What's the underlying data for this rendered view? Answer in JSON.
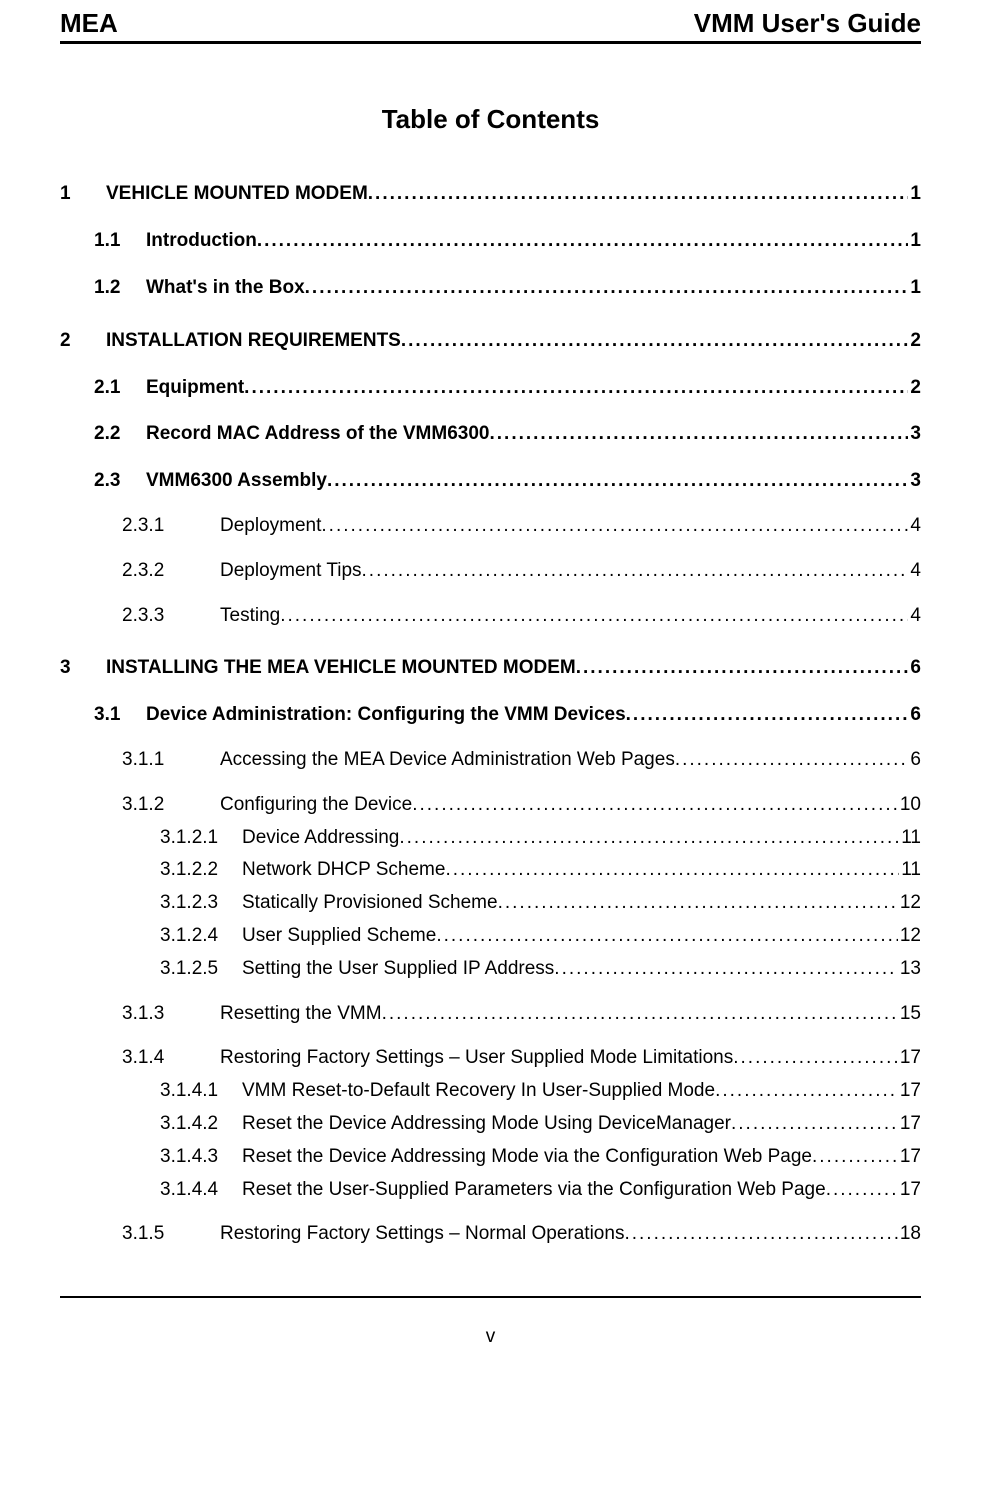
{
  "header": {
    "left": "MEA",
    "right": "VMM User's Guide"
  },
  "title": "Table of Contents",
  "entries": [
    {
      "lvl": 1,
      "num": "1",
      "text": "VEHICLE MOUNTED MODEM ",
      "page": "1"
    },
    {
      "lvl": 2,
      "num": "1.1",
      "text": "Introduction",
      "page": "1"
    },
    {
      "lvl": 2,
      "num": "1.2",
      "text": "What's in the Box ",
      "page": "1"
    },
    {
      "lvl": 1,
      "num": "2",
      "text": "INSTALLATION REQUIREMENTS",
      "page": "2"
    },
    {
      "lvl": 2,
      "num": "2.1",
      "text": "Equipment",
      "page": "2"
    },
    {
      "lvl": 2,
      "num": "2.2",
      "text": "Record MAC Address of the VMM6300 ",
      "page": "3"
    },
    {
      "lvl": 2,
      "num": "2.3",
      "text": "VMM6300 Assembly ",
      "page": "3"
    },
    {
      "lvl": 3,
      "num": "2.3.1",
      "text": "Deployment ",
      "page": "4"
    },
    {
      "lvl": 3,
      "num": "2.3.2",
      "text": "Deployment Tips",
      "page": "4"
    },
    {
      "lvl": 3,
      "num": "2.3.3",
      "text": "Testing",
      "page": "4"
    },
    {
      "lvl": 1,
      "num": "3",
      "text": "INSTALLING THE MEA VEHICLE MOUNTED MODEM",
      "page": "6"
    },
    {
      "lvl": 2,
      "num": "3.1",
      "text": "Device Administration: Configuring the VMM Devices",
      "page": "6"
    },
    {
      "lvl": 3,
      "num": "3.1.1",
      "text": "Accessing the MEA Device Administration Web Pages ",
      "page": "6"
    },
    {
      "lvl": 3,
      "num": "3.1.2",
      "text": "Configuring the Device ",
      "page": "10"
    },
    {
      "lvl": 4,
      "num": "3.1.2.1",
      "text": "Device Addressing",
      "page": "11"
    },
    {
      "lvl": 4,
      "num": "3.1.2.2",
      "text": "Network DHCP Scheme ",
      "page": "11"
    },
    {
      "lvl": 4,
      "num": "3.1.2.3",
      "text": "Statically Provisioned Scheme ",
      "page": "12"
    },
    {
      "lvl": 4,
      "num": "3.1.2.4",
      "text": "User Supplied Scheme",
      "page": "12"
    },
    {
      "lvl": 4,
      "num": "3.1.2.5",
      "text": "Setting the User Supplied IP Address ",
      "page": "13"
    },
    {
      "lvl": 3,
      "num": "3.1.3",
      "text": "Resetting the VMM",
      "page": "15"
    },
    {
      "lvl": 3,
      "num": "3.1.4",
      "text": "Restoring Factory Settings – User Supplied Mode Limitations ",
      "page": "17"
    },
    {
      "lvl": 4,
      "num": "3.1.4.1",
      "text": "VMM Reset-to-Default Recovery In User-Supplied Mode ",
      "page": "17"
    },
    {
      "lvl": 4,
      "num": "3.1.4.2",
      "text": "Reset the Device Addressing Mode Using DeviceManager",
      "page": "17"
    },
    {
      "lvl": 4,
      "num": "3.1.4.3",
      "text": "Reset the Device Addressing Mode via the Configuration Web Page",
      "page": "17"
    },
    {
      "lvl": 4,
      "num": "3.1.4.4",
      "text": "Reset the User-Supplied Parameters via the Configuration Web Page ",
      "page": "17"
    },
    {
      "lvl": 3,
      "num": "3.1.5",
      "text": "Restoring Factory Settings – Normal Operations ",
      "page": "18"
    }
  ],
  "footer_page": "v"
}
